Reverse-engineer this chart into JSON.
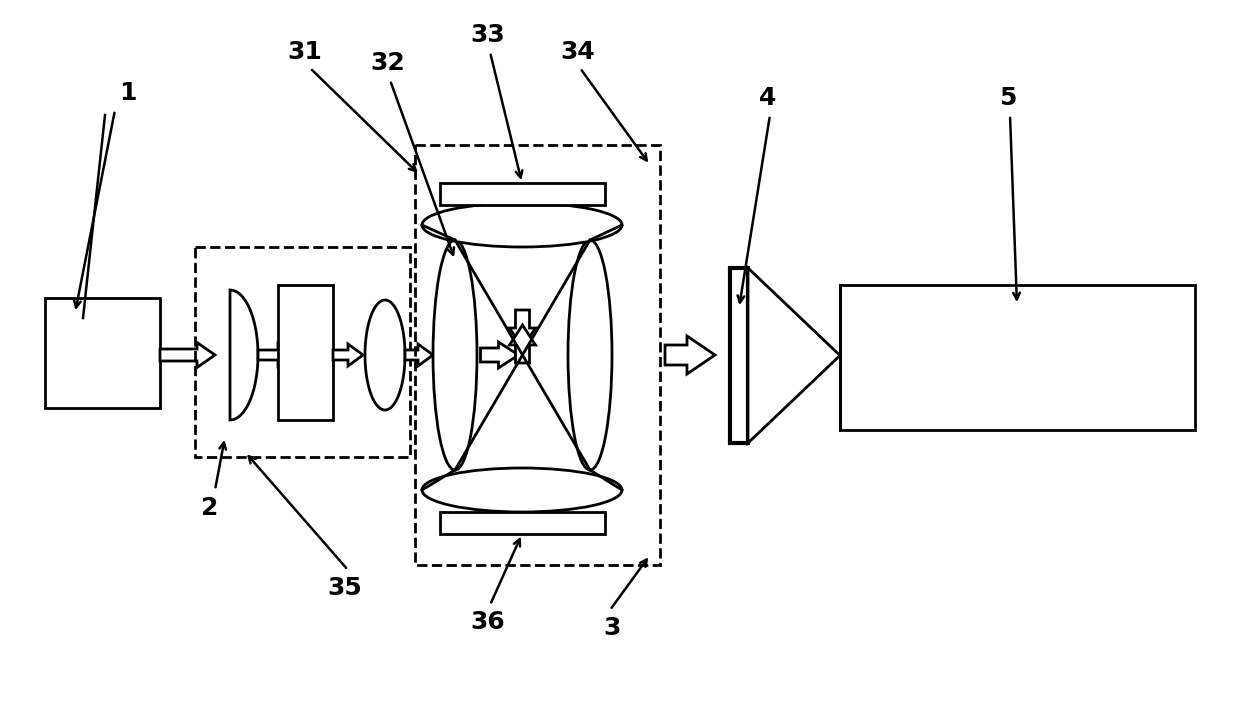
{
  "fig_width": 12.4,
  "fig_height": 7.03,
  "dpi": 100,
  "bg_color": "#ffffff",
  "lw": 2.0,
  "lw_thick": 3.0,
  "arrow_lw": 1.5,
  "label_fontsize": 18
}
